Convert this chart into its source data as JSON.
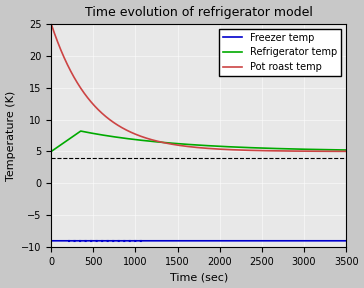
{
  "title": "Time evolution of refrigerator model",
  "xlabel": "Time (sec)",
  "ylabel": "Temperature (K)",
  "xlim": [
    0,
    3500
  ],
  "ylim": [
    -10,
    25
  ],
  "xticks": [
    0,
    500,
    1000,
    1500,
    2000,
    2500,
    3000,
    3500
  ],
  "yticks": [
    -10,
    -5,
    0,
    5,
    10,
    15,
    20,
    25
  ],
  "bg_color": "#c8c8c8",
  "plot_bg_color": "#e8e8e8",
  "dashed_line_y": 4.0,
  "freezer_val": -9.0,
  "fridge_start": 5.0,
  "fridge_peak": 8.2,
  "fridge_peak_t": 350,
  "fridge_end": 5.0,
  "roast_start": 25.0,
  "roast_end": 5.0,
  "freezer_color": "#0000cc",
  "fridge_color": "#00aa00",
  "roast_color": "#cc4444",
  "legend_labels": [
    "Freezer temp",
    "Refrigerator temp",
    "Pot roast temp"
  ],
  "T_end": 3500,
  "tau_roast": 500,
  "tau_fridge": 1200
}
